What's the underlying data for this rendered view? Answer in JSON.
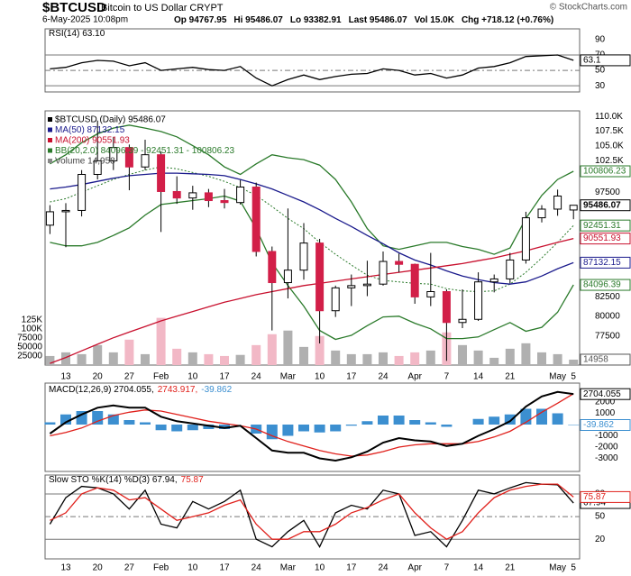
{
  "header": {
    "symbol": "$BTCUSD",
    "name": "Bitcoin to US Dollar  CRYPT",
    "date": "6-May-2025 10:08pm",
    "quote": [
      "Op 94767.95",
      "Hi 95486.07",
      "Lo 93382.91",
      "Last 95486.07",
      "Vol 15.0K",
      "Chg +718.12 (+0.76%)"
    ],
    "credit": "© StockCharts.com"
  },
  "chart_data": [
    {
      "type": "line",
      "title_parts": [
        "RSI(14) 63.10"
      ],
      "series": [
        {
          "color": "#000000",
          "values": [
            52,
            54,
            60,
            63,
            62,
            56,
            60,
            50,
            52,
            54,
            51,
            50,
            55,
            40,
            30,
            38,
            44,
            38,
            42,
            45,
            46,
            52,
            50,
            44,
            46,
            40,
            44,
            53,
            55,
            60,
            68,
            69,
            70,
            63.1
          ]
        }
      ],
      "ylim": [
        22,
        104
      ],
      "yticks": [
        30,
        50,
        70,
        90
      ],
      "ref_lines": [
        30,
        50,
        70
      ]
    },
    {
      "type": "candlestick",
      "title": "$BTCUSD (Daily) 95486.07",
      "log_scale": true,
      "categories": [
        null,
        "13",
        null,
        "20",
        null,
        "27",
        null,
        "Feb",
        null,
        "10",
        null,
        "17",
        null,
        "24",
        null,
        "Mar",
        null,
        "10",
        null,
        "17",
        null,
        "24",
        null,
        "Apr",
        null,
        "7",
        null,
        "14",
        null,
        "21",
        null,
        null,
        "May",
        "5"
      ],
      "open": [
        92500,
        94500,
        94700,
        100300,
        102500,
        104700,
        101500,
        103500,
        97600,
        96600,
        97400,
        96200,
        95900,
        98300,
        88700,
        84400,
        86100,
        89900,
        80700,
        83700,
        84000,
        84200,
        87300,
        86900,
        82500,
        83200,
        79200,
        79600,
        84500,
        84900,
        87500,
        93600,
        94900,
        94767.95
      ],
      "high": [
        95500,
        95800,
        101000,
        109300,
        106500,
        105200,
        106000,
        104000,
        100000,
        98500,
        98000,
        98000,
        99400,
        99000,
        89400,
        95000,
        92800,
        90500,
        84000,
        85500,
        87400,
        88700,
        88400,
        87000,
        88500,
        83500,
        83500,
        85800,
        85500,
        88500,
        94500,
        95500,
        97900,
        95486.07
      ],
      "low": [
        91200,
        89300,
        93800,
        99500,
        101000,
        97800,
        101000,
        91500,
        95700,
        94800,
        95200,
        95000,
        95600,
        88000,
        78200,
        82300,
        84800,
        76600,
        79900,
        81300,
        82600,
        84000,
        85800,
        81600,
        81300,
        74500,
        78500,
        79400,
        83100,
        84300,
        87000,
        92900,
        93900,
        93382.91
      ],
      "close": [
        94500,
        94700,
        100300,
        102500,
        104700,
        101500,
        103500,
        97600,
        96600,
        97400,
        96200,
        95900,
        98300,
        88700,
        84400,
        86100,
        89900,
        80700,
        83700,
        84000,
        84200,
        87300,
        86900,
        82500,
        83200,
        79200,
        79600,
        84500,
        84900,
        87500,
        93600,
        94900,
        96900,
        95486.07
      ],
      "up_color": "#ffffff",
      "down_color": "#d21f48",
      "ylim": [
        74000,
        111000
      ],
      "yticks": [
        {
          "value": 110000,
          "label": "110.0K"
        },
        {
          "value": 107500,
          "label": "107.5K"
        },
        {
          "value": 105000,
          "label": "105.0K"
        },
        {
          "value": 102500,
          "label": "102.5K"
        },
        97500,
        82500,
        80000,
        77500
      ],
      "series": [
        {
          "name": "MA(50) 87132.15",
          "color": "#1a1a8c",
          "values": [
            98000,
            98300,
            98700,
            99200,
            99700,
            100100,
            100300,
            100500,
            100500,
            100400,
            100300,
            100100,
            99500,
            98800,
            98000,
            97000,
            96000,
            94800,
            93500,
            92300,
            91000,
            89800,
            88500,
            87500,
            86800,
            86000,
            85300,
            84800,
            84400,
            84200,
            84500,
            85300,
            86300,
            87132.15
          ]
        },
        {
          "name": "MA(200) 90551.93",
          "color": "#c8102e",
          "values": [
            74200,
            74900,
            75700,
            76500,
            77300,
            78000,
            78700,
            79400,
            80000,
            80600,
            81200,
            81800,
            82300,
            82800,
            83200,
            83600,
            84000,
            84300,
            84600,
            84900,
            85200,
            85500,
            85800,
            86100,
            86400,
            86700,
            87000,
            87400,
            87800,
            88300,
            88800,
            89400,
            90000,
            90551.93
          ]
        }
      ],
      "bb": {
        "name": "BB(20,2.0) 84096.39 - 92451.31 - 100806.23",
        "color": "#2a7a2a",
        "upper": [
          102000,
          103500,
          105500,
          107000,
          108000,
          108500,
          108000,
          107400,
          106500,
          105000,
          103500,
          101500,
          100300,
          102000,
          103500,
          103000,
          102700,
          101800,
          99500,
          96000,
          92000,
          89500,
          89000,
          89500,
          90000,
          90000,
          89400,
          89000,
          88300,
          89200,
          93500,
          97000,
          99500,
          100806.23
        ],
        "middle": [
          96000,
          96500,
          97500,
          98500,
          99500,
          100300,
          101000,
          101500,
          101200,
          100600,
          100000,
          99200,
          98200,
          97000,
          95300,
          93500,
          92000,
          90000,
          88300,
          86800,
          85400,
          84700,
          84500,
          84300,
          84200,
          83600,
          83300,
          83200,
          83300,
          84200,
          85800,
          87800,
          90000,
          92451.31
        ],
        "lower": [
          90000,
          89500,
          89500,
          90000,
          91000,
          92100,
          94000,
          95600,
          95900,
          96200,
          96500,
          96900,
          96100,
          92000,
          87100,
          84000,
          81300,
          78200,
          77100,
          77600,
          78800,
          79900,
          80000,
          79100,
          78400,
          77200,
          77200,
          77400,
          78300,
          79200,
          78100,
          78600,
          80500,
          84096.39
        ]
      },
      "volume": {
        "name": "Volume 14,958",
        "up_color": "#b0b0b0",
        "down_color": "#f2b8c6",
        "values": [
          25000,
          35000,
          30000,
          55000,
          35000,
          70000,
          30000,
          130000,
          45000,
          35000,
          30000,
          25000,
          28000,
          55000,
          85000,
          95000,
          50000,
          80000,
          40000,
          30000,
          30000,
          35000,
          25000,
          35000,
          40000,
          90000,
          55000,
          40000,
          20000,
          45000,
          60000,
          35000,
          30000,
          14958
        ],
        "ylim": [
          0,
          700000
        ],
        "yticks": [
          25000,
          50000,
          75000,
          {
            "value": 100000,
            "label": "100K"
          },
          {
            "value": 125000,
            "label": "125K"
          }
        ]
      }
    },
    {
      "type": "macd",
      "title_parts": [
        "MACD(12,26,9) 2704.055,",
        "2743.917,",
        "-39.862"
      ],
      "macd": {
        "color": "#000000",
        "values": [
          -800,
          200,
          900,
          1500,
          1700,
          1500,
          1500,
          700,
          300,
          100,
          -100,
          -300,
          -100,
          -1200,
          -2300,
          -2500,
          -2500,
          -3000,
          -3200,
          -2900,
          -2400,
          -1600,
          -1200,
          -1400,
          -1500,
          -1900,
          -1700,
          -1000,
          -400,
          300,
          1600,
          2500,
          2900,
          2704.055
        ]
      },
      "signal": {
        "color": "#e0201b",
        "values": [
          -1000,
          -700,
          -300,
          300,
          800,
          1100,
          1300,
          1200,
          900,
          600,
          300,
          100,
          -100,
          -400,
          -1000,
          -1500,
          -1900,
          -2300,
          -2600,
          -2800,
          -2700,
          -2400,
          -2000,
          -1800,
          -1700,
          -1700,
          -1700,
          -1500,
          -1100,
          -600,
          200,
          1100,
          1900,
          2743.917
        ]
      },
      "histogram": {
        "color": "#3c8fd0",
        "values": [
          200,
          900,
          1200,
          1200,
          900,
          400,
          200,
          -500,
          -600,
          -500,
          -400,
          -400,
          0,
          -800,
          -1300,
          -1000,
          -600,
          -700,
          -600,
          -100,
          300,
          800,
          800,
          400,
          200,
          -200,
          0,
          500,
          700,
          900,
          1400,
          1400,
          1000,
          -39.862
        ]
      },
      "ylim": [
        -4160,
        3680
      ],
      "yticks": [
        -3000,
        -2000,
        -1000,
        0,
        1000,
        2000
      ]
    },
    {
      "type": "line",
      "title_parts": [
        "Slow STO %K(14) %D(3) 67.94,",
        "75.87"
      ],
      "categories": [
        null,
        "13",
        null,
        "20",
        null,
        "27",
        null,
        "Feb",
        null,
        "10",
        null,
        "17",
        null,
        "24",
        null,
        "Mar",
        null,
        "10",
        null,
        "17",
        null,
        "24",
        null,
        "Apr",
        null,
        "7",
        null,
        "14",
        null,
        "21",
        null,
        null,
        "May",
        "5"
      ],
      "series": [
        {
          "color": "#000000",
          "values": [
            40,
            75,
            90,
            88,
            80,
            60,
            85,
            40,
            35,
            70,
            60,
            70,
            85,
            20,
            10,
            30,
            45,
            10,
            55,
            65,
            60,
            85,
            80,
            25,
            30,
            10,
            45,
            85,
            80,
            88,
            95,
            93,
            92,
            67.94
          ]
        },
        {
          "color": "#e0201b",
          "values": [
            45,
            55,
            80,
            88,
            85,
            72,
            75,
            60,
            45,
            50,
            55,
            65,
            72,
            40,
            20,
            20,
            30,
            30,
            40,
            55,
            62,
            72,
            80,
            55,
            35,
            20,
            30,
            55,
            75,
            85,
            90,
            93,
            93,
            75.87
          ]
        }
      ],
      "ylim": [
        -6,
        105
      ],
      "yticks": [
        20,
        50,
        80
      ],
      "ref_lines": [
        20,
        50,
        80
      ]
    }
  ]
}
